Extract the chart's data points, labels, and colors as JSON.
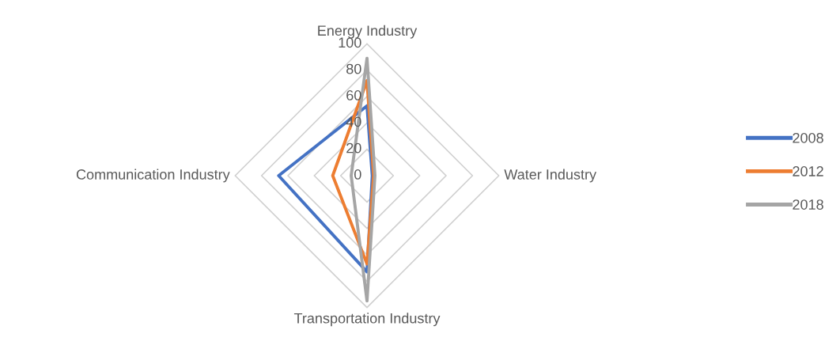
{
  "chart_data": {
    "type": "radar",
    "categories": [
      "Energy Industry",
      "Water Industry",
      "Transportation Industry",
      "Communication Industry"
    ],
    "series": [
      {
        "name": "2008",
        "color": "#4472c4",
        "values": [
          53,
          4,
          73,
          67
        ]
      },
      {
        "name": "2012",
        "color": "#ed7d31",
        "values": [
          72,
          5,
          67,
          26
        ]
      },
      {
        "name": "2018",
        "color": "#a5a5a5",
        "values": [
          89,
          6,
          95,
          12
        ]
      }
    ],
    "ylim": [
      0,
      100
    ],
    "yticks": [
      0,
      20,
      40,
      60,
      80,
      100
    ],
    "grid": true,
    "legend": "right",
    "marker": "none",
    "line_style": "solid"
  }
}
